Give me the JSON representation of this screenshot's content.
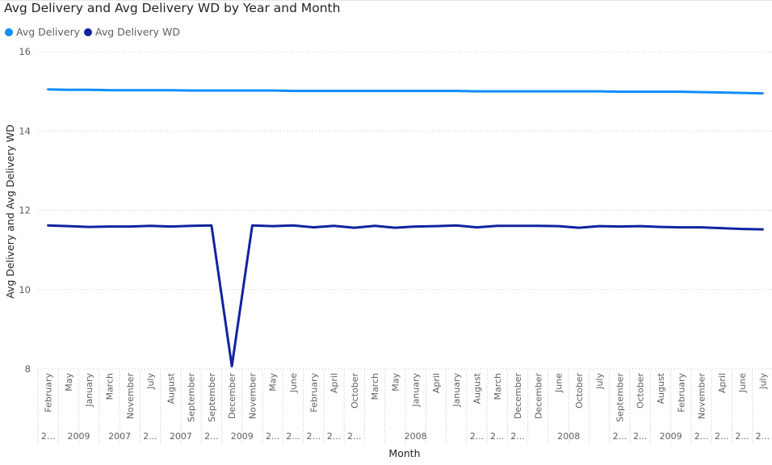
{
  "chart_data": {
    "type": "line",
    "title": "Avg Delivery and Avg Delivery WD by Year and Month",
    "xlabel": "Month",
    "ylabel": "Avg Delivery and Avg Delivery WD",
    "ylim": [
      8,
      16
    ],
    "yticks": [
      8,
      10,
      12,
      14,
      16
    ],
    "grid": true,
    "legend_position": "top-left",
    "categories": [
      "February",
      "May",
      "January",
      "March",
      "November",
      "July",
      "August",
      "September",
      "September",
      "December",
      "November",
      "May",
      "June",
      "February",
      "April",
      "October",
      "March",
      "May",
      "January",
      "April",
      "January",
      "August",
      "March",
      "December",
      "December",
      "June",
      "October",
      "July",
      "September",
      "October",
      "August",
      "February",
      "November",
      "April",
      "June",
      "July"
    ],
    "year_groups": [
      {
        "label": "2...",
        "start": 0,
        "end": 0
      },
      {
        "label": "2009",
        "start": 1,
        "end": 2
      },
      {
        "label": "2007",
        "start": 3,
        "end": 4
      },
      {
        "label": "2...",
        "start": 5,
        "end": 5
      },
      {
        "label": "2007",
        "start": 6,
        "end": 7
      },
      {
        "label": "2...",
        "start": 8,
        "end": 8
      },
      {
        "label": "2009",
        "start": 9,
        "end": 10
      },
      {
        "label": "2...",
        "start": 11,
        "end": 11
      },
      {
        "label": "2...",
        "start": 12,
        "end": 12
      },
      {
        "label": "2...",
        "start": 13,
        "end": 13
      },
      {
        "label": "2...",
        "start": 14,
        "end": 14
      },
      {
        "label": "2...",
        "start": 15,
        "end": 15
      },
      {
        "label": "2008",
        "start": 16,
        "end": 20
      },
      {
        "label": "2...",
        "start": 21,
        "end": 21
      },
      {
        "label": "2...",
        "start": 22,
        "end": 22
      },
      {
        "label": "2...",
        "start": 23,
        "end": 23
      },
      {
        "label": "2008",
        "start": 24,
        "end": 27
      },
      {
        "label": "2...",
        "start": 28,
        "end": 28
      },
      {
        "label": "2...",
        "start": 29,
        "end": 29
      },
      {
        "label": "2009",
        "start": 30,
        "end": 31
      },
      {
        "label": "2...",
        "start": 32,
        "end": 32
      },
      {
        "label": "2...",
        "start": 33,
        "end": 33
      },
      {
        "label": "2...",
        "start": 34,
        "end": 34
      },
      {
        "label": "2...",
        "start": 35,
        "end": 35
      }
    ],
    "series": [
      {
        "name": "Avg Delivery",
        "color": "#118DFF",
        "values": [
          15.05,
          15.04,
          15.04,
          15.03,
          15.03,
          15.03,
          15.03,
          15.02,
          15.02,
          15.02,
          15.02,
          15.02,
          15.01,
          15.01,
          15.01,
          15.01,
          15.01,
          15.01,
          15.01,
          15.01,
          15.01,
          15.0,
          15.0,
          15.0,
          15.0,
          15.0,
          15.0,
          15.0,
          14.99,
          14.99,
          14.99,
          14.99,
          14.98,
          14.97,
          14.96,
          14.95
        ]
      },
      {
        "name": "Avg Delivery WD",
        "color": "#12239E",
        "values": [
          11.62,
          11.6,
          11.58,
          11.59,
          11.59,
          11.61,
          11.59,
          11.61,
          11.62,
          8.07,
          11.62,
          11.6,
          11.62,
          11.57,
          11.61,
          11.56,
          11.61,
          11.56,
          11.59,
          11.6,
          11.62,
          11.57,
          11.61,
          11.61,
          11.61,
          11.6,
          11.56,
          11.6,
          11.59,
          11.6,
          11.58,
          11.57,
          11.57,
          11.55,
          11.53,
          11.52
        ]
      }
    ]
  }
}
